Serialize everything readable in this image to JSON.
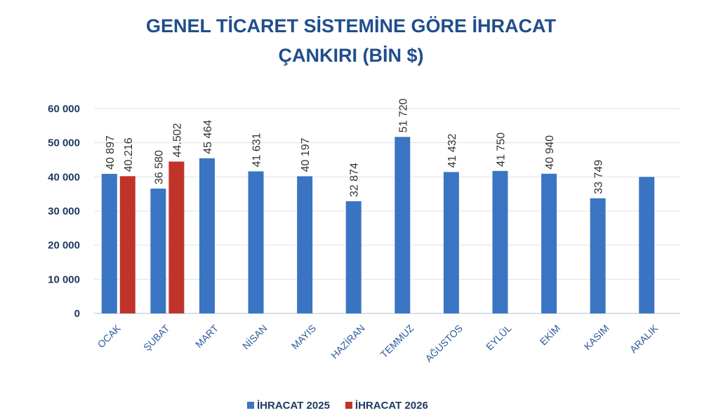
{
  "chart_data": {
    "type": "bar",
    "title": "GENEL TİCARET SİSTEMİNE GÖRE İHRACAT",
    "subtitle": "ÇANKIRI (BİN $)",
    "xlabel": "",
    "ylabel": "",
    "ylim": [
      0,
      60000
    ],
    "yticks": [
      0,
      10000,
      20000,
      30000,
      40000,
      50000,
      60000
    ],
    "ytick_labels": [
      "0",
      "10 000",
      "20 000",
      "30 000",
      "40 000",
      "50 000",
      "60 000"
    ],
    "grid": true,
    "legend_position": "bottom",
    "categories": [
      "OCAK",
      "ŞUBAT",
      "MART",
      "NİSAN",
      "MAYIS",
      "HAZİRAN",
      "TEMMUZ",
      "AĞUSTOS",
      "EYLÜL",
      "EKİM",
      "KASIM",
      "ARALIK"
    ],
    "series": [
      {
        "name": "İHRACAT 2025",
        "color": "#3a75c4",
        "values": [
          40897,
          36580,
          45464,
          41631,
          40197,
          32874,
          51720,
          41432,
          41750,
          40940,
          33749,
          40000
        ],
        "labels": [
          "40 897",
          "36 580",
          "45 464",
          "41 631",
          "40 197",
          "32 874",
          "51 720",
          "41 432",
          "41 750",
          "40 940",
          "33 749",
          null
        ]
      },
      {
        "name": "İHRACAT 2026",
        "color": "#c0332b",
        "values": [
          40216,
          44502,
          null,
          null,
          null,
          null,
          null,
          null,
          null,
          null,
          null,
          null
        ],
        "labels": [
          "40.216",
          "44.502",
          null,
          null,
          null,
          null,
          null,
          null,
          null,
          null,
          null,
          null
        ]
      }
    ]
  }
}
